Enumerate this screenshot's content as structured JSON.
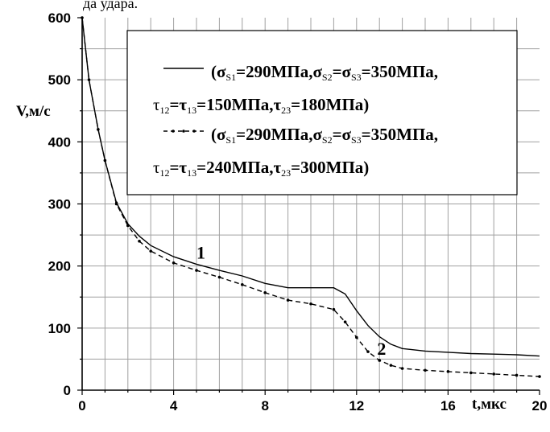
{
  "top_fragment": "да удара.",
  "chart_data": {
    "type": "line",
    "xlabel": "t,мкс",
    "ylabel": "V,м/с",
    "xlim": [
      0,
      20
    ],
    "ylim": [
      0,
      600
    ],
    "x_ticks": [
      "0",
      "4",
      "8",
      "12",
      "16",
      "20"
    ],
    "y_ticks": [
      "0",
      "100",
      "200",
      "300",
      "400",
      "500",
      "600"
    ],
    "grid": true,
    "legend_position": "top-right",
    "annotations": [
      "1",
      "2"
    ],
    "series": [
      {
        "name": "(σS1=290МПа,σS2=σS3=350МПа, τ12=τ13=150МПа,τ23=180МПа)",
        "style": "solid",
        "color": "#000000",
        "x": [
          0,
          0.3,
          0.7,
          1.0,
          1.5,
          2.0,
          2.5,
          3.0,
          4.0,
          5.0,
          6.0,
          7.0,
          8.0,
          9.0,
          10.0,
          11.0,
          11.5,
          12.0,
          12.5,
          13.0,
          13.5,
          14.0,
          15.0,
          16.0,
          17.0,
          18.0,
          19.0,
          20.0
        ],
        "y": [
          600,
          500,
          420,
          370,
          302,
          268,
          248,
          233,
          215,
          203,
          193,
          184,
          172,
          165,
          165,
          165,
          155,
          128,
          104,
          86,
          74,
          67,
          63,
          61,
          59,
          58,
          57,
          55
        ]
      },
      {
        "name": "(σS1=290МПа,σS2=σS3=350МПа, τ12=τ13=240МПа,τ23=300МПа)",
        "style": "dashed-dotted",
        "color": "#000000",
        "x": [
          0,
          0.3,
          0.7,
          1.0,
          1.5,
          2.0,
          2.5,
          3.0,
          4.0,
          5.0,
          6.0,
          7.0,
          8.0,
          9.0,
          10.0,
          11.0,
          11.5,
          12.0,
          12.5,
          13.0,
          13.5,
          14.0,
          15.0,
          16.0,
          17.0,
          18.0,
          19.0,
          20.0
        ],
        "y": [
          600,
          500,
          420,
          370,
          300,
          265,
          240,
          224,
          205,
          193,
          182,
          170,
          157,
          145,
          139,
          130,
          110,
          85,
          62,
          48,
          40,
          35,
          32,
          30,
          28,
          26,
          24,
          22
        ]
      }
    ]
  },
  "legend": {
    "entries": [
      {
        "line1": {
          "p": "(σ",
          "s1": "S1",
          "a": "=290МПа,σ",
          "s2": "S2",
          "b": "=σ",
          "s3": "S3",
          "c": "=350МПа,"
        },
        "line2": {
          "p": "τ",
          "s1": "12",
          "a": "=τ",
          "s2": "13",
          "b": "=150МПа,τ",
          "s3": "23",
          "c": "=180МПа)"
        }
      },
      {
        "line1": {
          "p": "(σ",
          "s1": "S1",
          "a": "=290МПа,σ",
          "s2": "S2",
          "b": "=σ",
          "s3": "S3",
          "c": "=350МПа,"
        },
        "line2": {
          "p": "τ",
          "s1": "12",
          "a": "=τ",
          "s2": "13",
          "b": "=240МПа,τ",
          "s3": "23",
          "c": "=300МПа)"
        }
      }
    ]
  }
}
